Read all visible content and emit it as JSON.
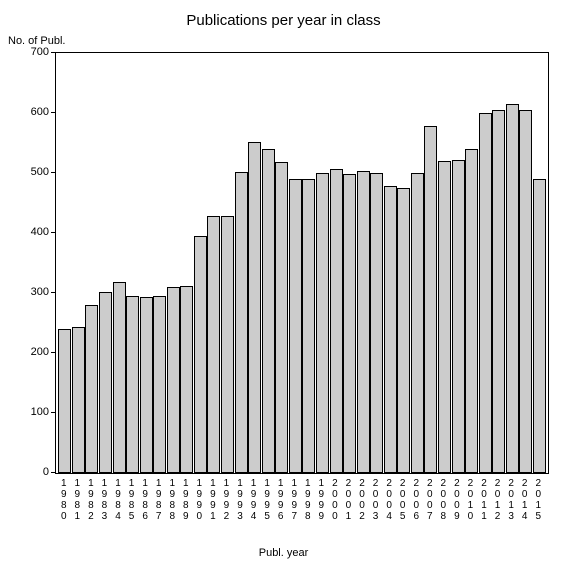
{
  "chart": {
    "type": "bar",
    "title": "Publications per year in class",
    "title_fontsize": 15,
    "y_axis_label": "No. of Publ.",
    "x_axis_label": "Publ. year",
    "label_fontsize": 11,
    "background_color": "#ffffff",
    "border_color": "#000000",
    "bar_color": "#cccccc",
    "bar_border_color": "#000000",
    "ylim": [
      0,
      700
    ],
    "ytick_step": 100,
    "yticks": [
      0,
      100,
      200,
      300,
      400,
      500,
      600,
      700
    ],
    "categories": [
      "1980",
      "1981",
      "1982",
      "1983",
      "1984",
      "1985",
      "1986",
      "1987",
      "1988",
      "1989",
      "1990",
      "1991",
      "1992",
      "1993",
      "1994",
      "1995",
      "1996",
      "1997",
      "1998",
      "1999",
      "2000",
      "2001",
      "2002",
      "2003",
      "2004",
      "2005",
      "2006",
      "2007",
      "2008",
      "2009",
      "2010",
      "2011",
      "2012",
      "2013",
      "2014",
      "2015"
    ],
    "values": [
      240,
      243,
      280,
      302,
      318,
      295,
      293,
      295,
      310,
      312,
      395,
      428,
      428,
      502,
      552,
      540,
      518,
      490,
      490,
      500,
      507,
      498,
      503,
      500,
      478,
      475,
      500,
      578,
      520,
      522,
      540,
      600,
      605,
      615,
      605,
      490
    ]
  }
}
